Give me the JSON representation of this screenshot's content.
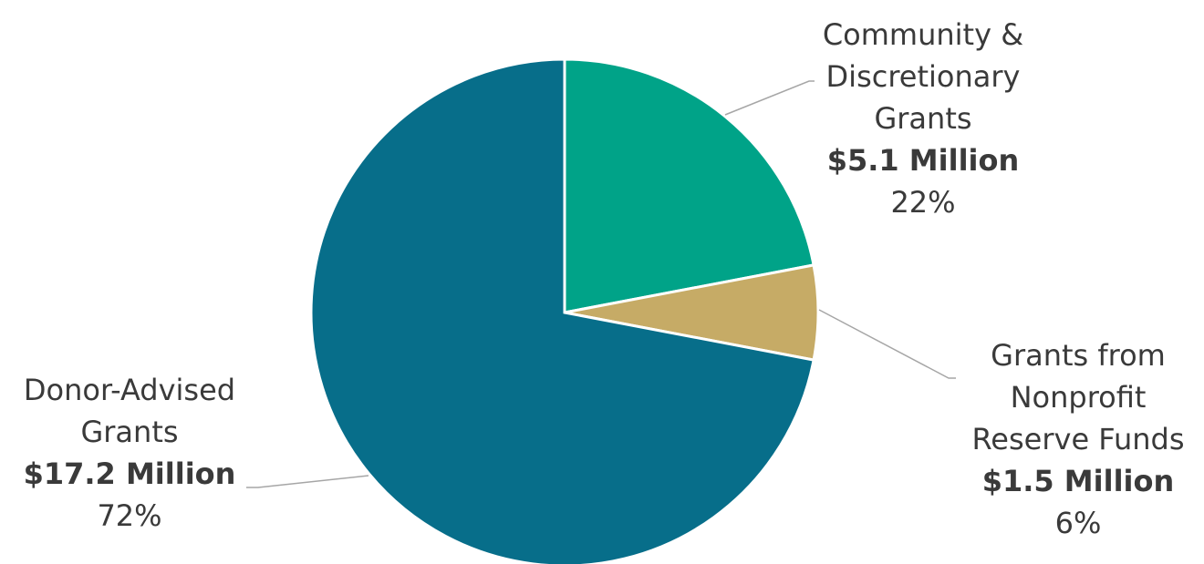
{
  "chart_data": {
    "type": "pie",
    "title": "",
    "slices": [
      {
        "label_lines": [
          "Community &",
          "Discretionary",
          "Grants"
        ],
        "amount": "$5.1 Million",
        "percent_label": "22%",
        "value": 22,
        "color": "#00a388"
      },
      {
        "label_lines": [
          "Grants from",
          "Nonprofit",
          "Reserve Funds"
        ],
        "amount": "$1.5 Million",
        "percent_label": "6%",
        "value": 6,
        "color": "#c6ab66"
      },
      {
        "label_lines": [
          "Donor-Advised",
          "Grants"
        ],
        "amount": "$17.2 Million",
        "percent_label": "72%",
        "value": 72,
        "color": "#076e8a"
      }
    ],
    "legend": "none",
    "start_angle": "12 o'clock",
    "direction": "clockwise"
  }
}
